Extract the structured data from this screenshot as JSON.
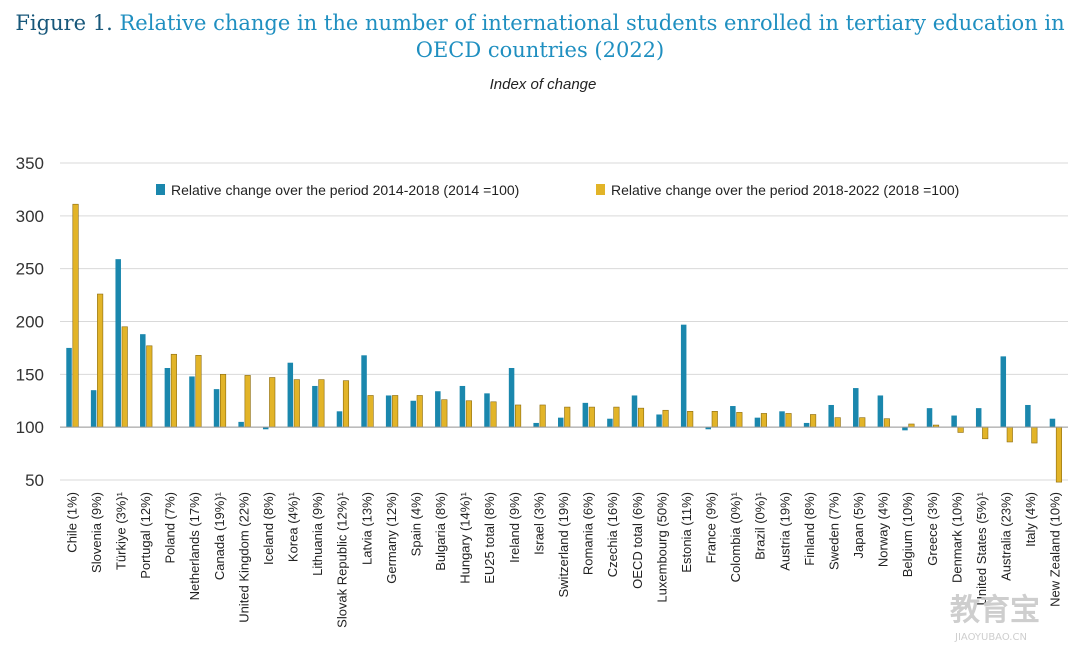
{
  "title_prefix": "Figure 1.",
  "title_text": "Relative change in the number of international students enrolled in tertiary education in OECD countries (2022)",
  "subtitle": "Index of change",
  "watermark": {
    "logo": "教育宝",
    "site": "JIAOYUBAO.CN"
  },
  "colors": {
    "series1": "#1a87ad",
    "series2": "#e2b428",
    "grid": "#d9d9d9",
    "title": "#1f8fc0"
  },
  "chart_data": {
    "type": "bar",
    "title": "Relative change in the number of international students enrolled in tertiary education in OECD countries (2022)",
    "subtitle": "Index of change",
    "ylim": [
      50,
      350
    ],
    "yticks": [
      50,
      100,
      150,
      200,
      250,
      300,
      350
    ],
    "baseline": 100,
    "grid": true,
    "legend_position": "top",
    "categories": [
      "Chile (1%)",
      "Slovenia (9%)",
      "Türkiye (3%)¹",
      "Portugal (12%)",
      "Poland (7%)",
      "Netherlands (17%)",
      "Canada (19%)¹",
      "United Kingdom (22%)",
      "Iceland (8%)",
      "Korea (4%)¹",
      "Lithuania (9%)",
      "Slovak Republic (12%)¹",
      "Latvia (13%)",
      "Germany (12%)",
      "Spain (4%)",
      "Bulgaria (8%)",
      "Hungary (14%)¹",
      "EU25 total (8%)",
      "Ireland (9%)",
      "Israel (3%)",
      "Switzerland (19%)",
      "Romania (6%)",
      "Czechia (16%)",
      "OECD total (6%)",
      "Luxembourg (50%)",
      "Estonia (11%)",
      "France (9%)",
      "Colombia (0%)¹",
      "Brazil (0%)¹",
      "Austria (19%)",
      "Finland (8%)",
      "Sweden (7%)",
      "Japan (5%)",
      "Norway (4%)",
      "Belgium (10%)",
      "Greece (3%)",
      "Denmark (10%)",
      "United States (5%)¹",
      "Australia (23%)",
      "Italy (4%)",
      "New Zealand (10%)"
    ],
    "series": [
      {
        "name": "Relative change over the period 2014-2018 (2014 =100)",
        "values": [
          175,
          135,
          259,
          188,
          156,
          148,
          136,
          105,
          98,
          161,
          139,
          115,
          168,
          130,
          125,
          134,
          139,
          132,
          156,
          104,
          109,
          123,
          108,
          130,
          112,
          197,
          98,
          120,
          109,
          115,
          104,
          121,
          137,
          130,
          97,
          118,
          111,
          118,
          167,
          121,
          108
        ]
      },
      {
        "name": "Relative change over the period 2018-2022 (2018 =100)",
        "values": [
          311,
          226,
          195,
          177,
          169,
          168,
          150,
          149,
          147,
          145,
          145,
          144,
          130,
          130,
          130,
          126,
          125,
          124,
          121,
          121,
          119,
          119,
          119,
          118,
          116,
          115,
          115,
          114,
          113,
          113,
          112,
          109,
          109,
          108,
          103,
          102,
          95,
          89,
          86,
          85,
          48
        ]
      }
    ]
  }
}
